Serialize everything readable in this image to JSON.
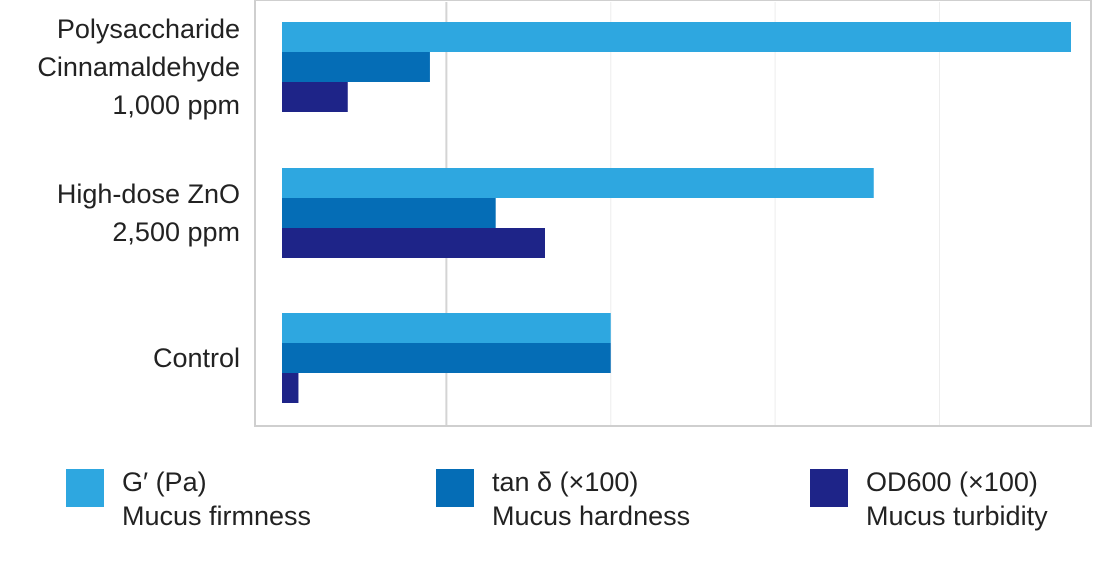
{
  "chart_data": {
    "type": "bar",
    "orientation": "horizontal",
    "title": "",
    "xlabel": "",
    "ylabel": "",
    "xlim": [
      0,
      4.8
    ],
    "grid": true,
    "legend_position": "bottom",
    "categories": [
      "Polysaccharide\nCinnamaldehyde\n1,000 ppm",
      "High-dose ZnO\n2,500 ppm",
      "Control"
    ],
    "series": [
      {
        "name": "G′ (Pa)",
        "subtitle": "Mucus firmness",
        "color": "#2ea7e0",
        "values": [
          4.8,
          3.6,
          2.0
        ]
      },
      {
        "name": "tan δ (×100)",
        "subtitle": "Mucus hardness",
        "color": "#056db6",
        "values": [
          0.9,
          1.3,
          2.0
        ]
      },
      {
        "name": "OD600 (×100)",
        "subtitle": "Mucus turbidity",
        "color": "#1e2488",
        "values": [
          0.4,
          1.6,
          0.1
        ]
      }
    ]
  }
}
